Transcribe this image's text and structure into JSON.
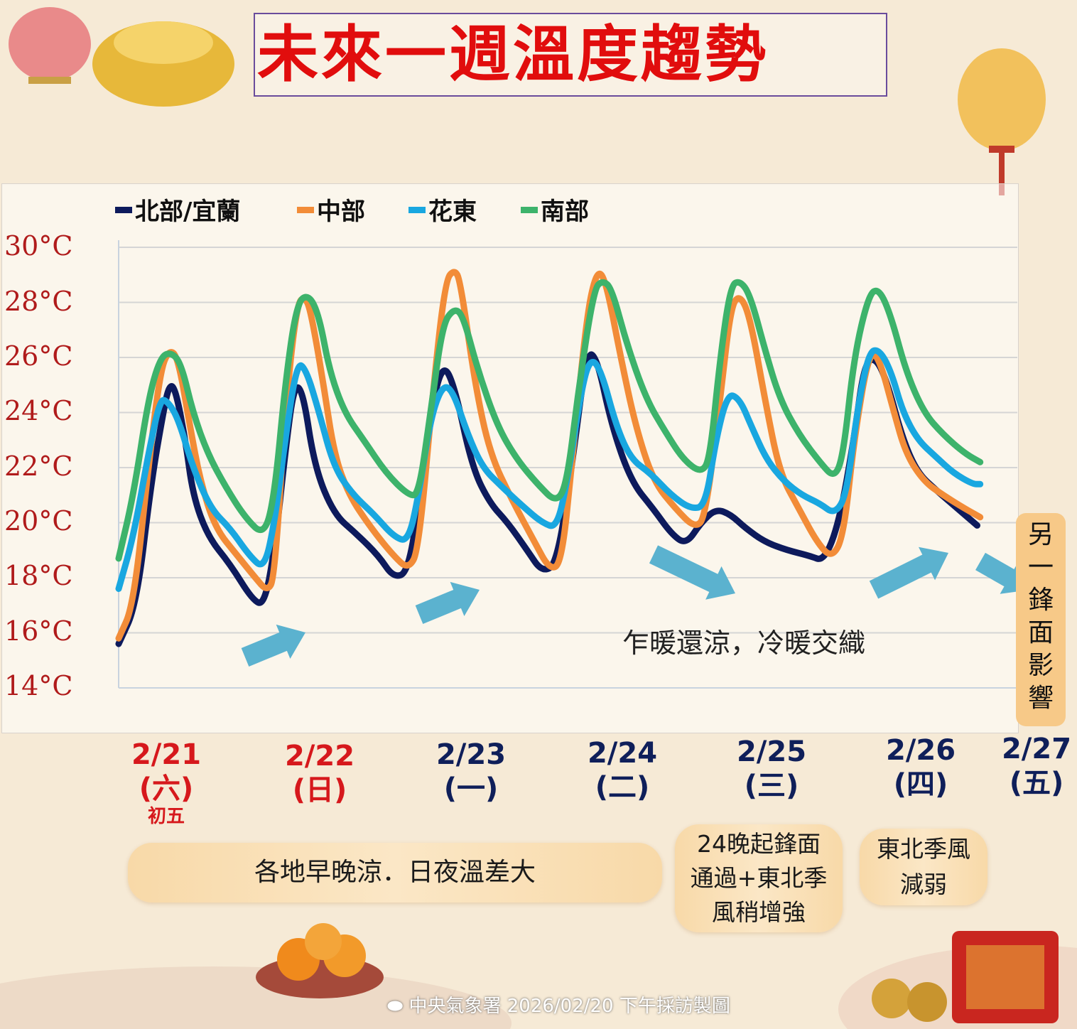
{
  "header": {
    "title": "未來一週溫度趨勢"
  },
  "chart_data": {
    "type": "line",
    "yunit_labels": [
      "30°C",
      "28°C",
      "26°C",
      "24°C",
      "22°C",
      "20°C",
      "18°C",
      "16°C",
      "14°C"
    ],
    "ylim": [
      14,
      30
    ],
    "xlim": [
      0,
      6.2
    ],
    "grid": true,
    "legend_position": "top-left",
    "series": [
      {
        "name": "北部/宜蘭",
        "color": "#0d1a5c",
        "points": [
          [
            0,
            15.6
          ],
          [
            0.12,
            17
          ],
          [
            0.22,
            21.5
          ],
          [
            0.3,
            24
          ],
          [
            0.34,
            25
          ],
          [
            0.38,
            24.9
          ],
          [
            0.45,
            23
          ],
          [
            0.5,
            21
          ],
          [
            0.6,
            19.5
          ],
          [
            0.75,
            18.5
          ],
          [
            0.9,
            17.2
          ],
          [
            0.98,
            17
          ],
          [
            1.05,
            19
          ],
          [
            1.12,
            22.5
          ],
          [
            1.18,
            25
          ],
          [
            1.24,
            24.8
          ],
          [
            1.32,
            22
          ],
          [
            1.45,
            20.3
          ],
          [
            1.6,
            19.6
          ],
          [
            1.75,
            18.8
          ],
          [
            1.85,
            18
          ],
          [
            1.95,
            18.2
          ],
          [
            2.03,
            21
          ],
          [
            2.1,
            24
          ],
          [
            2.18,
            25.8
          ],
          [
            2.26,
            25
          ],
          [
            2.38,
            22
          ],
          [
            2.5,
            20.7
          ],
          [
            2.62,
            20
          ],
          [
            2.75,
            19
          ],
          [
            2.85,
            18.2
          ],
          [
            2.95,
            18.5
          ],
          [
            3.05,
            22
          ],
          [
            3.15,
            26.2
          ],
          [
            3.22,
            26
          ],
          [
            3.32,
            23.5
          ],
          [
            3.45,
            21.5
          ],
          [
            3.6,
            20.5
          ],
          [
            3.72,
            19.6
          ],
          [
            3.82,
            19.2
          ],
          [
            3.92,
            20
          ],
          [
            4.02,
            20.5
          ],
          [
            4.12,
            20.3
          ],
          [
            4.22,
            19.8
          ],
          [
            4.35,
            19.3
          ],
          [
            4.5,
            19
          ],
          [
            4.65,
            18.8
          ],
          [
            4.75,
            18.6
          ],
          [
            4.85,
            20
          ],
          [
            4.95,
            23
          ],
          [
            5.02,
            25.8
          ],
          [
            5.1,
            26
          ],
          [
            5.18,
            25
          ],
          [
            5.28,
            23
          ],
          [
            5.38,
            21.8
          ],
          [
            5.5,
            21.2
          ],
          [
            5.65,
            20.5
          ],
          [
            5.78,
            19.9
          ]
        ]
      },
      {
        "name": "中部",
        "color": "#f28c38",
        "points": [
          [
            0,
            15.8
          ],
          [
            0.1,
            17
          ],
          [
            0.2,
            22
          ],
          [
            0.28,
            25.5
          ],
          [
            0.34,
            26.3
          ],
          [
            0.4,
            26
          ],
          [
            0.48,
            23.5
          ],
          [
            0.55,
            21.5
          ],
          [
            0.65,
            19.8
          ],
          [
            0.8,
            18.8
          ],
          [
            0.92,
            18
          ],
          [
            1.0,
            17.5
          ],
          [
            1.05,
            18
          ],
          [
            1.12,
            24
          ],
          [
            1.2,
            28
          ],
          [
            1.26,
            28.2
          ],
          [
            1.3,
            27.5
          ],
          [
            1.38,
            25
          ],
          [
            1.45,
            22.5
          ],
          [
            1.55,
            21
          ],
          [
            1.7,
            19.8
          ],
          [
            1.85,
            18.8
          ],
          [
            1.95,
            18.3
          ],
          [
            2.02,
            19
          ],
          [
            2.12,
            25
          ],
          [
            2.2,
            28.8
          ],
          [
            2.26,
            29.2
          ],
          [
            2.3,
            28.8
          ],
          [
            2.4,
            25
          ],
          [
            2.5,
            22.5
          ],
          [
            2.65,
            20.8
          ],
          [
            2.8,
            19.3
          ],
          [
            2.9,
            18.3
          ],
          [
            2.98,
            18.5
          ],
          [
            3.05,
            22
          ],
          [
            3.15,
            27.5
          ],
          [
            3.22,
            29.2
          ],
          [
            3.28,
            28.8
          ],
          [
            3.38,
            26
          ],
          [
            3.48,
            23.5
          ],
          [
            3.6,
            21.5
          ],
          [
            3.75,
            20.5
          ],
          [
            3.88,
            19.8
          ],
          [
            3.95,
            20.2
          ],
          [
            4.05,
            24.5
          ],
          [
            4.12,
            27.8
          ],
          [
            4.18,
            28.3
          ],
          [
            4.25,
            27.5
          ],
          [
            4.35,
            24.5
          ],
          [
            4.45,
            21.8
          ],
          [
            4.58,
            20.5
          ],
          [
            4.7,
            19.3
          ],
          [
            4.8,
            18.7
          ],
          [
            4.88,
            19.5
          ],
          [
            4.95,
            23
          ],
          [
            5.05,
            26.2
          ],
          [
            5.12,
            26
          ],
          [
            5.22,
            24
          ],
          [
            5.3,
            22.5
          ],
          [
            5.42,
            21.5
          ],
          [
            5.55,
            21
          ],
          [
            5.7,
            20.5
          ],
          [
            5.8,
            20.2
          ]
        ]
      },
      {
        "name": "花東",
        "color": "#19a7e0",
        "points": [
          [
            0,
            17.6
          ],
          [
            0.1,
            19.5
          ],
          [
            0.2,
            22.5
          ],
          [
            0.28,
            24.5
          ],
          [
            0.33,
            24.4
          ],
          [
            0.4,
            23.8
          ],
          [
            0.5,
            22
          ],
          [
            0.62,
            20.5
          ],
          [
            0.75,
            19.8
          ],
          [
            0.88,
            18.8
          ],
          [
            0.98,
            18.3
          ],
          [
            1.05,
            20
          ],
          [
            1.12,
            23
          ],
          [
            1.2,
            25.8
          ],
          [
            1.26,
            25.6
          ],
          [
            1.35,
            24
          ],
          [
            1.45,
            22
          ],
          [
            1.58,
            21
          ],
          [
            1.72,
            20.3
          ],
          [
            1.85,
            19.5
          ],
          [
            1.95,
            19.3
          ],
          [
            2.02,
            21
          ],
          [
            2.1,
            23.8
          ],
          [
            2.18,
            25
          ],
          [
            2.25,
            24.8
          ],
          [
            2.35,
            23.2
          ],
          [
            2.45,
            22
          ],
          [
            2.58,
            21.3
          ],
          [
            2.72,
            20.6
          ],
          [
            2.85,
            20
          ],
          [
            2.95,
            19.8
          ],
          [
            3.02,
            21.5
          ],
          [
            3.12,
            25
          ],
          [
            3.18,
            26
          ],
          [
            3.25,
            25.5
          ],
          [
            3.35,
            23.5
          ],
          [
            3.45,
            22.3
          ],
          [
            3.58,
            21.8
          ],
          [
            3.72,
            21
          ],
          [
            3.85,
            20.5
          ],
          [
            3.95,
            20.6
          ],
          [
            4.02,
            23
          ],
          [
            4.1,
            24.7
          ],
          [
            4.18,
            24.5
          ],
          [
            4.26,
            23.5
          ],
          [
            4.36,
            22.3
          ],
          [
            4.48,
            21.5
          ],
          [
            4.6,
            21
          ],
          [
            4.72,
            20.7
          ],
          [
            4.82,
            20.3
          ],
          [
            4.9,
            21
          ],
          [
            4.97,
            24
          ],
          [
            5.05,
            26.2
          ],
          [
            5.12,
            26.3
          ],
          [
            5.2,
            25.5
          ],
          [
            5.28,
            24
          ],
          [
            5.38,
            23
          ],
          [
            5.5,
            22.4
          ],
          [
            5.62,
            21.8
          ],
          [
            5.75,
            21.4
          ],
          [
            5.8,
            21.4
          ]
        ]
      },
      {
        "name": "南部",
        "color": "#3db36b",
        "points": [
          [
            0,
            18.7
          ],
          [
            0.1,
            21
          ],
          [
            0.2,
            24.5
          ],
          [
            0.28,
            26
          ],
          [
            0.35,
            26.2
          ],
          [
            0.42,
            25.8
          ],
          [
            0.5,
            24
          ],
          [
            0.6,
            22.5
          ],
          [
            0.72,
            21.3
          ],
          [
            0.85,
            20.2
          ],
          [
            0.98,
            19.5
          ],
          [
            1.05,
            21
          ],
          [
            1.12,
            25
          ],
          [
            1.2,
            28
          ],
          [
            1.28,
            28.3
          ],
          [
            1.35,
            27.5
          ],
          [
            1.42,
            25.5
          ],
          [
            1.52,
            24
          ],
          [
            1.65,
            23
          ],
          [
            1.8,
            21.8
          ],
          [
            1.95,
            21
          ],
          [
            2.02,
            21
          ],
          [
            2.1,
            24
          ],
          [
            2.18,
            27.2
          ],
          [
            2.26,
            27.8
          ],
          [
            2.32,
            27.5
          ],
          [
            2.42,
            25.5
          ],
          [
            2.55,
            23.5
          ],
          [
            2.68,
            22.3
          ],
          [
            2.82,
            21.4
          ],
          [
            2.95,
            20.7
          ],
          [
            3.02,
            21.5
          ],
          [
            3.1,
            25
          ],
          [
            3.2,
            28.5
          ],
          [
            3.26,
            28.8
          ],
          [
            3.32,
            28.5
          ],
          [
            3.42,
            26.5
          ],
          [
            3.55,
            24.5
          ],
          [
            3.68,
            23.3
          ],
          [
            3.8,
            22.3
          ],
          [
            3.92,
            21.8
          ],
          [
            3.98,
            22.3
          ],
          [
            4.05,
            26
          ],
          [
            4.12,
            28.6
          ],
          [
            4.18,
            28.8
          ],
          [
            4.25,
            28.3
          ],
          [
            4.35,
            26.3
          ],
          [
            4.45,
            24.5
          ],
          [
            4.58,
            23.2
          ],
          [
            4.72,
            22.2
          ],
          [
            4.82,
            21.6
          ],
          [
            4.88,
            22.5
          ],
          [
            4.95,
            26
          ],
          [
            5.05,
            28.3
          ],
          [
            5.12,
            28.5
          ],
          [
            5.2,
            27.5
          ],
          [
            5.3,
            25.5
          ],
          [
            5.42,
            24
          ],
          [
            5.55,
            23.2
          ],
          [
            5.7,
            22.5
          ],
          [
            5.8,
            22.2
          ]
        ]
      }
    ],
    "dates": [
      {
        "date": "2/21",
        "day": "(六)",
        "note": "初五",
        "color": "#d6181c"
      },
      {
        "date": "2/22",
        "day": "(日)",
        "note": "",
        "color": "#d6181c"
      },
      {
        "date": "2/23",
        "day": "(一)",
        "note": "",
        "color": "#0f1f5a"
      },
      {
        "date": "2/24",
        "day": "(二)",
        "note": "",
        "color": "#0f1f5a"
      },
      {
        "date": "2/25",
        "day": "(三)",
        "note": "",
        "color": "#0f1f5a"
      },
      {
        "date": "2/26",
        "day": "(四)",
        "note": "",
        "color": "#0f1f5a"
      },
      {
        "date": "2/27",
        "day": "(五)",
        "note": "",
        "color": "#0f1f5a"
      }
    ],
    "annotation": "乍暖還涼，冷暖交織"
  },
  "side_note": "另一鋒面影響",
  "pills": {
    "p1": "各地早晚涼．日夜溫差大",
    "p2_lines": [
      "24晚起鋒面",
      "通過+東北季",
      "風稍增強"
    ],
    "p3_lines": [
      "東北季風",
      "減弱"
    ]
  },
  "footer": {
    "credit": "中央氣象署 2026/02/20 下午採訪製圖"
  }
}
